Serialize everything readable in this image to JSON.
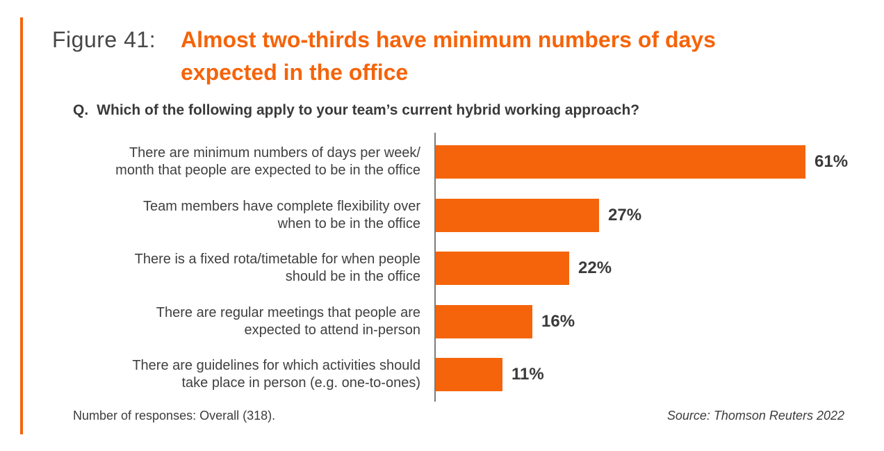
{
  "figure": {
    "label": "Figure 41:",
    "title_line1": "Almost two-thirds have minimum numbers of days",
    "title_line2": "expected in the office"
  },
  "question": {
    "prefix": "Q.",
    "text": "Which of the following apply to your team’s current hybrid working approach?"
  },
  "footer": {
    "footnote": "Number of responses: Overall (318).",
    "source": "Source: Thomson Reuters 2022"
  },
  "colors": {
    "accent_orange": "#F5640A",
    "text_dark": "#3A3A3A",
    "label_gray": "#3F3F3F",
    "figure_label_gray": "#474747",
    "axis_gray": "#7B7B7B"
  },
  "chart_data": {
    "type": "bar",
    "orientation": "horizontal",
    "title": "Almost two-thirds have minimum numbers of days expected in the office",
    "categories": [
      "There are minimum numbers of days per week/month that people are expected to be in the office",
      "Team members have complete flexibility over when to be in the office",
      "There is a fixed rota/timetable for when people should be in the office",
      "There are regular meetings that people are expected to attend in-person",
      "There are guidelines for which activities should take place in person (e.g. one-to-ones)"
    ],
    "category_display_lines": [
      [
        "There are minimum numbers of days per week/",
        "month that people are expected to be in the office"
      ],
      [
        "Team members have complete flexibility over",
        "when to be in the office"
      ],
      [
        "There is a fixed rota/timetable for when people",
        "should be in the office"
      ],
      [
        "There are regular meetings that people are",
        "expected to attend in-person"
      ],
      [
        "There are guidelines for which activities should",
        "take place in person (e.g. one-to-ones)"
      ]
    ],
    "values": [
      61,
      27,
      22,
      16,
      11
    ],
    "value_labels": [
      "61%",
      "27%",
      "22%",
      "16%",
      "11%"
    ],
    "xlim": [
      0,
      70
    ],
    "bar_color": "#F5640A",
    "grid": false,
    "legend": false,
    "value_label_position": "right-of-bar"
  }
}
